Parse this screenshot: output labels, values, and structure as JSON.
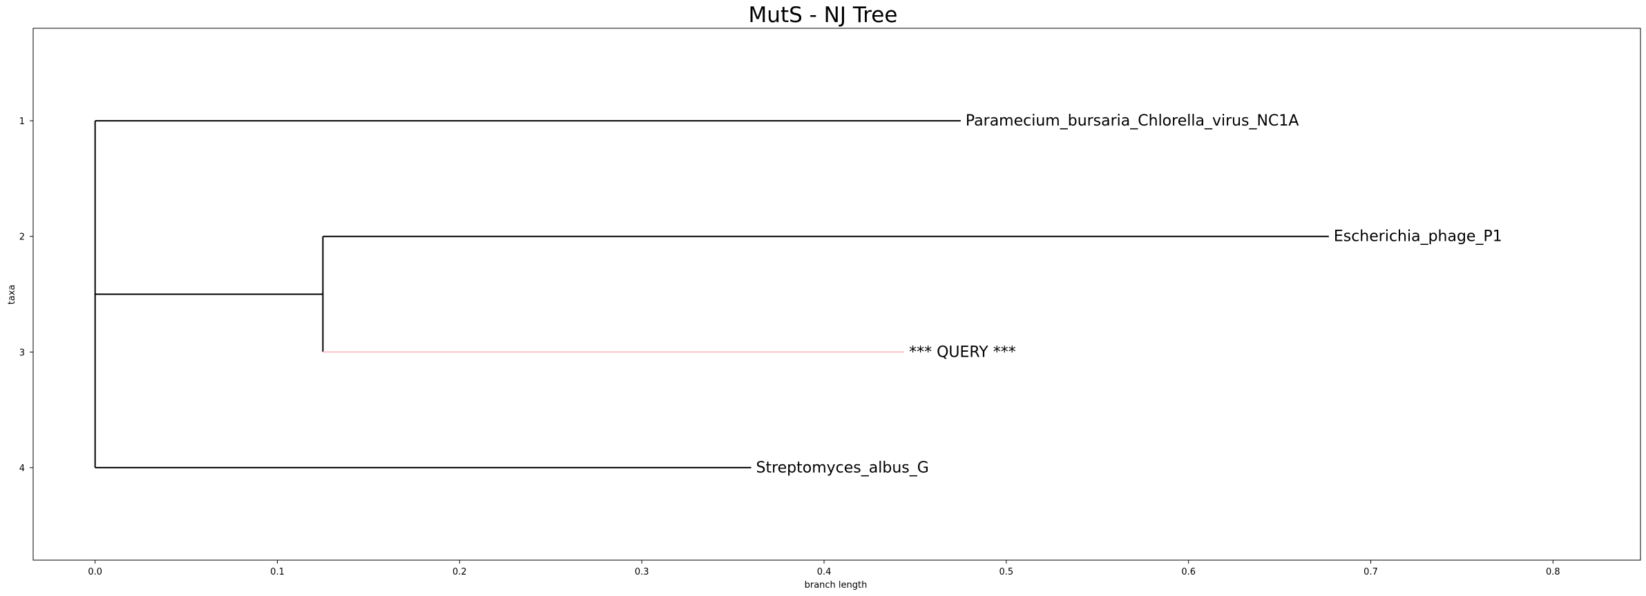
{
  "chart_data": {
    "type": "dendrogram",
    "title": "MutS - NJ Tree",
    "xlabel": "branch length",
    "ylabel": "taxa",
    "xlim": [
      -0.034,
      0.848
    ],
    "ylim": [
      4.8,
      0.2
    ],
    "x_ticks": [
      0.0,
      0.1,
      0.2,
      0.3,
      0.4,
      0.5,
      0.6,
      0.7,
      0.8
    ],
    "x_tick_labels": [
      "0.0",
      "0.1",
      "0.2",
      "0.3",
      "0.4",
      "0.5",
      "0.6",
      "0.7",
      "0.8"
    ],
    "y_ticks": [
      1,
      2,
      3,
      4
    ],
    "y_tick_labels": [
      "1",
      "2",
      "3",
      "4"
    ],
    "grid": false,
    "leaves": [
      {
        "label": "Paramecium_bursaria_Chlorella_virus_NC1A",
        "y": 1,
        "x_start": 0.0,
        "x_end": 0.475,
        "color": "#000000"
      },
      {
        "label": "Escherichia_phage_P1",
        "y": 2,
        "x_start": 0.125,
        "x_end": 0.677,
        "color": "#000000"
      },
      {
        "label": "*** QUERY ***",
        "y": 3,
        "x_start": 0.125,
        "x_end": 0.444,
        "color": "#ffc0cb"
      },
      {
        "label": "Streptomyces_albus_G",
        "y": 4,
        "x_start": 0.0,
        "x_end": 0.36,
        "color": "#000000"
      }
    ],
    "internal_edges": [
      {
        "x": 0.0,
        "y_start": 1,
        "y_end": 4
      },
      {
        "x": 0.125,
        "y_start": 2,
        "y_end": 3
      },
      {
        "y": 2.5,
        "x_start": 0.0,
        "x_end": 0.125
      }
    ]
  }
}
